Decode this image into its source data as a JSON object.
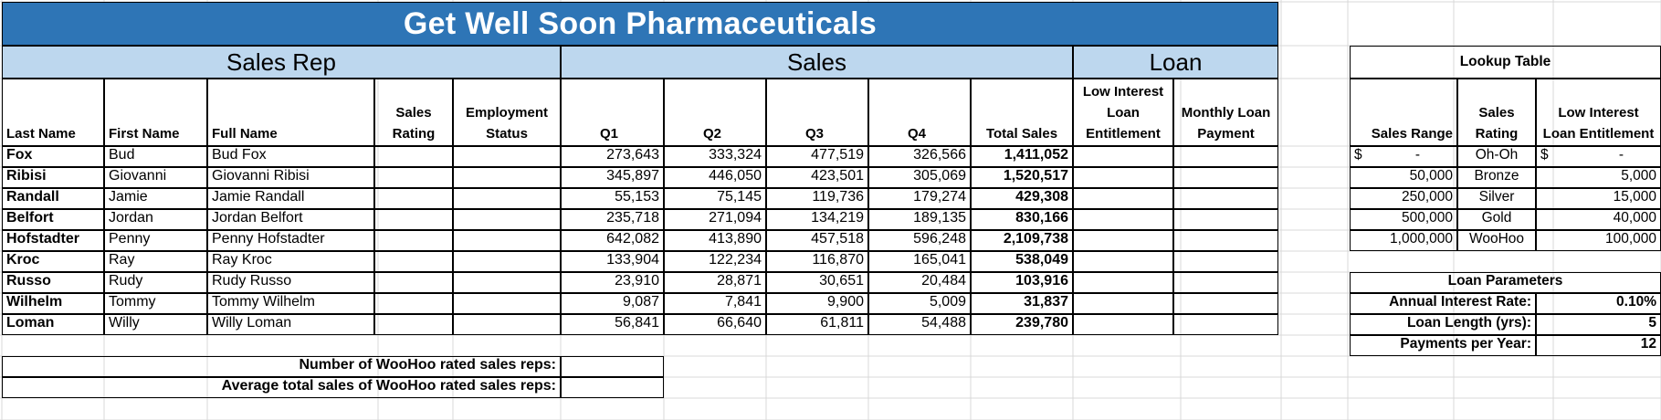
{
  "title": "Get Well Soon Pharmaceuticals",
  "groups": {
    "sales_rep": "Sales Rep",
    "sales": "Sales",
    "loan": "Loan"
  },
  "headers": {
    "last_name": "Last Name",
    "first_name": "First Name",
    "full_name": "Full Name",
    "sales_rating": "Sales Rating",
    "employment_status": "Employment Status",
    "q1": "Q1",
    "q2": "Q2",
    "q3": "Q3",
    "q4": "Q4",
    "total_sales": "Total Sales",
    "low_interest": "Low Interest Loan Entitlement",
    "monthly_payment": "Monthly Loan Payment"
  },
  "rows": [
    {
      "last": "Fox",
      "first": "Bud",
      "full": "Bud Fox",
      "q1": "273,643",
      "q2": "333,324",
      "q3": "477,519",
      "q4": "326,566",
      "total": "1,411,052"
    },
    {
      "last": "Ribisi",
      "first": "Giovanni",
      "full": "Giovanni Ribisi",
      "q1": "345,897",
      "q2": "446,050",
      "q3": "423,501",
      "q4": "305,069",
      "total": "1,520,517"
    },
    {
      "last": "Randall",
      "first": "Jamie",
      "full": "Jamie Randall",
      "q1": "55,153",
      "q2": "75,145",
      "q3": "119,736",
      "q4": "179,274",
      "total": "429,308"
    },
    {
      "last": "Belfort",
      "first": "Jordan",
      "full": "Jordan Belfort",
      "q1": "235,718",
      "q2": "271,094",
      "q3": "134,219",
      "q4": "189,135",
      "total": "830,166"
    },
    {
      "last": "Hofstadter",
      "first": "Penny",
      "full": "Penny Hofstadter",
      "q1": "642,082",
      "q2": "413,890",
      "q3": "457,518",
      "q4": "596,248",
      "total": "2,109,738"
    },
    {
      "last": "Kroc",
      "first": "Ray",
      "full": "Ray Kroc",
      "q1": "133,904",
      "q2": "122,234",
      "q3": "116,870",
      "q4": "165,041",
      "total": "538,049"
    },
    {
      "last": "Russo",
      "first": "Rudy",
      "full": "Rudy Russo",
      "q1": "23,910",
      "q2": "28,871",
      "q3": "30,651",
      "q4": "20,484",
      "total": "103,916"
    },
    {
      "last": "Wilhelm",
      "first": "Tommy",
      "full": "Tommy Wilhelm",
      "q1": "9,087",
      "q2": "7,841",
      "q3": "9,900",
      "q4": "5,009",
      "total": "31,837"
    },
    {
      "last": "Loman",
      "first": "Willy",
      "full": "Willy Loman",
      "q1": "56,841",
      "q2": "66,640",
      "q3": "61,811",
      "q4": "54,488",
      "total": "239,780"
    }
  ],
  "summary": {
    "woohoo_count_label": "Number of WooHoo rated sales reps:",
    "woohoo_avg_label": "Average total sales of WooHoo rated sales reps:"
  },
  "lookup": {
    "title": "Lookup Table",
    "headers": {
      "range": "Sales Range",
      "rating": "Sales Rating",
      "entitlement": "Low Interest Loan Entitlement"
    },
    "currency": "$",
    "dash": "-",
    "rows": [
      {
        "range": "-",
        "rating": "Oh-Oh",
        "entitlement": "-"
      },
      {
        "range": "50,000",
        "rating": "Bronze",
        "entitlement": "5,000"
      },
      {
        "range": "250,000",
        "rating": "Silver",
        "entitlement": "15,000"
      },
      {
        "range": "500,000",
        "rating": "Gold",
        "entitlement": "40,000"
      },
      {
        "range": "1,000,000",
        "rating": "WooHoo",
        "entitlement": "100,000"
      }
    ]
  },
  "loan_params": {
    "title": "Loan Parameters",
    "rate_label": "Annual Interest Rate:",
    "rate": "0.10%",
    "length_label": "Loan Length (yrs):",
    "length": "5",
    "ppy_label": "Payments per Year:",
    "ppy": "12"
  },
  "colors": {
    "title_bg": "#2e75b6",
    "header_bg": "#bdd7ee",
    "grid": "#d9d9d9"
  }
}
